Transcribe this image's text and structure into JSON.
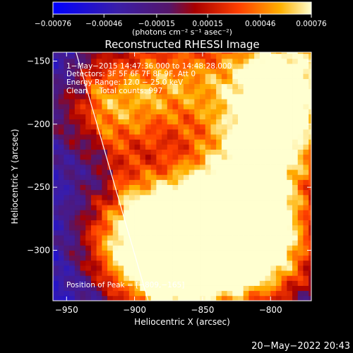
{
  "chart_data": {
    "type": "heatmap",
    "title": "Reconstructed RHESSI Image",
    "xlabel": "Heliocentric X (arcsec)",
    "ylabel": "Heliocentric Y (arcsec)",
    "xlim": [
      -960,
      -770
    ],
    "ylim": [
      -340,
      -143
    ],
    "x_ticks": [
      -950,
      -900,
      -850,
      -800
    ],
    "x_tick_labels": [
      "−950",
      "−900",
      "−850",
      "−800"
    ],
    "y_ticks": [
      -150,
      -200,
      -250,
      -300
    ],
    "y_tick_labels": [
      "−150",
      "−200",
      "−250",
      "−300"
    ],
    "colorbar": {
      "range": [
        -0.00076,
        0.00076
      ],
      "ticks": [
        -0.00076,
        -0.00046,
        -0.00015,
        0.00015,
        0.00046,
        0.00076
      ],
      "tick_labels": [
        "−0.00076",
        "−0.00046",
        "−0.00015",
        "0.00015",
        "0.00046",
        "0.00076"
      ],
      "unit_label": "(photons cm⁻² s⁻¹ asec⁻²)"
    },
    "annotations": [
      "1−May−2015 14:47:36.000 to 14:48:28.000",
      "Detectors: 3F 5F 6F 7F 8F 9F, Att 0",
      "Energy Range: 12.0 − 25.0 keV",
      "Clean     Total counts: 997"
    ],
    "peak_label": "Position of Peak = [−809,−165]",
    "peak_position": [
      -809,
      -165
    ],
    "limb_line": [
      [
        -943,
        -143
      ],
      [
        -890,
        -340
      ]
    ],
    "source_hotspots": [
      {
        "x": -790,
        "y": -160,
        "intensity": 0.00076
      },
      {
        "x": -800,
        "y": -215,
        "intensity": 0.0006
      },
      {
        "x": -830,
        "y": -270,
        "intensity": 0.00055
      },
      {
        "x": -810,
        "y": -300,
        "intensity": 0.0006
      },
      {
        "x": -860,
        "y": -290,
        "intensity": 0.0005
      },
      {
        "x": -880,
        "y": -320,
        "intensity": 0.00045
      },
      {
        "x": -905,
        "y": -285,
        "intensity": 0.0004
      },
      {
        "x": -925,
        "y": -190,
        "intensity": 0.00035
      },
      {
        "x": -870,
        "y": -165,
        "intensity": 0.0003
      }
    ]
  },
  "footer": {
    "timestamp": "20−May−2022 20:43"
  }
}
